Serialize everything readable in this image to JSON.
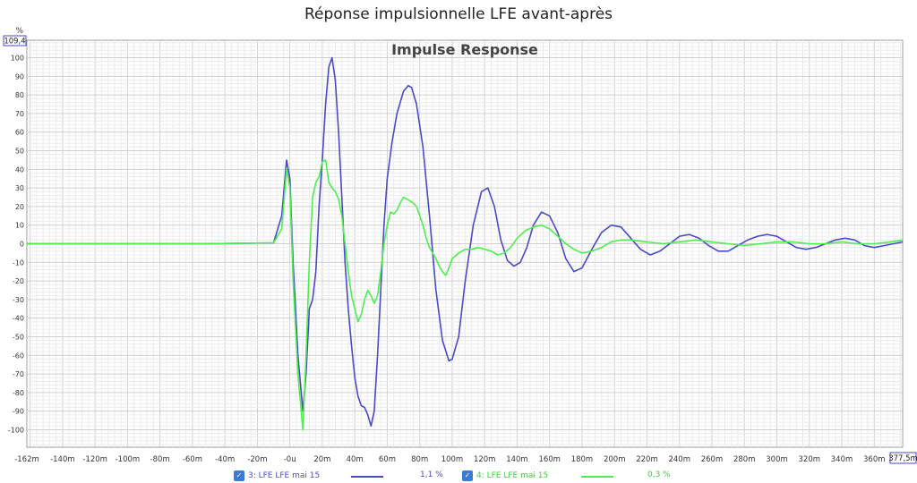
{
  "page_title": "Réponse impulsionnelle LFE avant-après",
  "chart_data": {
    "type": "line",
    "title": "Impulse Response",
    "ylabel": "%",
    "xlim": [
      -0.162,
      0.3775
    ],
    "ylim": [
      -109.4,
      109.4
    ],
    "y_top_label": "109,4",
    "x_right_label": "377,5m",
    "grid": true,
    "x_ticks": [
      "-162m",
      "-140m",
      "-120m",
      "-100m",
      "-80m",
      "-60m",
      "-40m",
      "-20m",
      "-0u",
      "20m",
      "40m",
      "60m",
      "80m",
      "100m",
      "120m",
      "140m",
      "160m",
      "180m",
      "200m",
      "220m",
      "240m",
      "260m",
      "280m",
      "300m",
      "320m",
      "340m",
      "360m"
    ],
    "y_ticks": [
      "100",
      "90",
      "80",
      "70",
      "60",
      "50",
      "40",
      "30",
      "20",
      "10",
      "0",
      "-10",
      "-20",
      "-30",
      "-40",
      "-50",
      "-60",
      "-70",
      "-80",
      "-90",
      "-100"
    ],
    "series": [
      {
        "name": "3: LFE LFE mai 15",
        "color": "#4a4ac8",
        "legend_value": "1,1 %",
        "x": [
          -0.162,
          -0.1,
          -0.05,
          -0.01,
          -0.005,
          -0.002,
          0.0,
          0.002,
          0.005,
          0.008,
          0.01,
          0.012,
          0.014,
          0.016,
          0.018,
          0.02,
          0.022,
          0.024,
          0.026,
          0.028,
          0.03,
          0.032,
          0.034,
          0.036,
          0.038,
          0.04,
          0.042,
          0.044,
          0.046,
          0.048,
          0.05,
          0.052,
          0.054,
          0.056,
          0.058,
          0.06,
          0.063,
          0.066,
          0.07,
          0.073,
          0.075,
          0.078,
          0.082,
          0.086,
          0.09,
          0.094,
          0.098,
          0.1,
          0.104,
          0.108,
          0.113,
          0.118,
          0.122,
          0.126,
          0.13,
          0.134,
          0.138,
          0.142,
          0.146,
          0.15,
          0.155,
          0.16,
          0.165,
          0.17,
          0.175,
          0.18,
          0.186,
          0.192,
          0.198,
          0.204,
          0.21,
          0.216,
          0.222,
          0.228,
          0.234,
          0.24,
          0.246,
          0.252,
          0.258,
          0.264,
          0.27,
          0.276,
          0.282,
          0.288,
          0.294,
          0.3,
          0.306,
          0.312,
          0.318,
          0.324,
          0.33,
          0.336,
          0.342,
          0.348,
          0.354,
          0.36,
          0.366,
          0.372,
          0.3775
        ],
        "values": [
          0,
          0,
          0,
          0.5,
          15,
          45,
          35,
          -10,
          -60,
          -90,
          -70,
          -35,
          -30,
          -15,
          20,
          45,
          75,
          95,
          100,
          88,
          60,
          25,
          -10,
          -35,
          -55,
          -72,
          -82,
          -87,
          -88,
          -92,
          -98,
          -90,
          -60,
          -25,
          10,
          35,
          55,
          70,
          82,
          85,
          84,
          75,
          52,
          15,
          -25,
          -52,
          -63,
          -62,
          -50,
          -20,
          10,
          28,
          30,
          20,
          2,
          -9,
          -12,
          -10,
          -2,
          10,
          17,
          15,
          6,
          -8,
          -15,
          -13,
          -3,
          6,
          10,
          9,
          3,
          -3,
          -6,
          -4,
          0,
          4,
          5,
          3,
          -1,
          -4,
          -4,
          -1,
          2,
          4,
          5,
          4,
          1,
          -2,
          -3,
          -2,
          0,
          2,
          3,
          2,
          -1,
          -2,
          -1,
          0,
          1
        ]
      },
      {
        "name": "4: LFE LFE mai 15",
        "color": "#4cf04c",
        "legend_value": "0,3 %",
        "x": [
          -0.162,
          -0.1,
          -0.05,
          -0.01,
          -0.005,
          -0.002,
          0.0,
          0.002,
          0.005,
          0.008,
          0.01,
          0.012,
          0.014,
          0.016,
          0.018,
          0.02,
          0.022,
          0.024,
          0.026,
          0.028,
          0.03,
          0.032,
          0.034,
          0.036,
          0.038,
          0.04,
          0.042,
          0.044,
          0.046,
          0.048,
          0.05,
          0.052,
          0.054,
          0.056,
          0.058,
          0.06,
          0.062,
          0.064,
          0.066,
          0.068,
          0.07,
          0.072,
          0.074,
          0.076,
          0.078,
          0.08,
          0.082,
          0.084,
          0.086,
          0.088,
          0.09,
          0.092,
          0.094,
          0.096,
          0.098,
          0.1,
          0.104,
          0.108,
          0.112,
          0.116,
          0.12,
          0.124,
          0.128,
          0.132,
          0.136,
          0.14,
          0.145,
          0.15,
          0.155,
          0.16,
          0.165,
          0.17,
          0.175,
          0.18,
          0.186,
          0.192,
          0.198,
          0.204,
          0.21,
          0.22,
          0.23,
          0.24,
          0.25,
          0.26,
          0.27,
          0.28,
          0.29,
          0.3,
          0.31,
          0.32,
          0.33,
          0.34,
          0.35,
          0.36,
          0.37,
          0.3775
        ],
        "values": [
          0,
          0,
          0,
          0.5,
          8,
          40,
          30,
          -20,
          -70,
          -100,
          -60,
          -10,
          25,
          33,
          36,
          44,
          45,
          33,
          30,
          28,
          24,
          15,
          0,
          -15,
          -28,
          -35,
          -42,
          -38,
          -30,
          -25,
          -28,
          -32,
          -28,
          -15,
          0,
          10,
          17,
          16,
          18,
          22,
          25,
          24,
          23,
          22,
          20,
          15,
          10,
          3,
          -2,
          -5,
          -8,
          -12,
          -15,
          -17,
          -13,
          -8,
          -5,
          -3,
          -3,
          -2,
          -3,
          -4,
          -6,
          -5,
          -2,
          3,
          7,
          9,
          10,
          8,
          4,
          0,
          -3,
          -5,
          -4,
          -2,
          1,
          2,
          2,
          1,
          0,
          1,
          2,
          1,
          0,
          -1,
          0,
          1,
          1,
          0,
          0,
          1,
          0,
          0,
          1,
          2
        ]
      }
    ]
  }
}
